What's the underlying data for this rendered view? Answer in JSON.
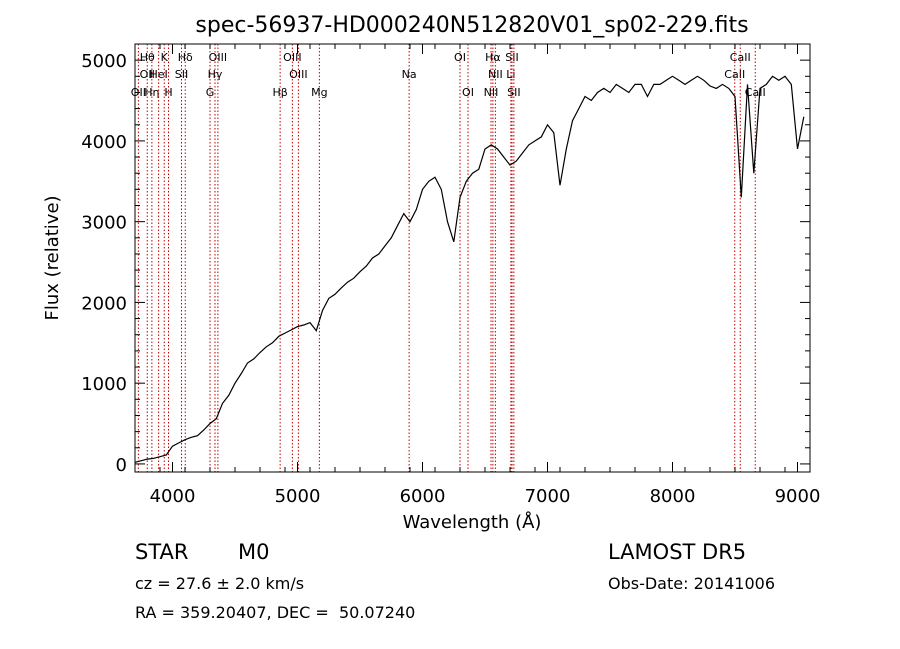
{
  "chart_data": {
    "type": "line",
    "title": "spec-56937-HD000240N512820V01_sp02-229.fits",
    "xlabel": "Wavelength (Å)",
    "ylabel": "Flux (relative)",
    "xlim": [
      3700,
      9100
    ],
    "ylim": [
      -100,
      5200
    ],
    "xticks": [
      4000,
      5000,
      6000,
      7000,
      8000,
      9000
    ],
    "yticks": [
      0,
      1000,
      2000,
      3000,
      4000,
      5000
    ],
    "grid": false,
    "series": [
      {
        "x": [
          3700,
          3750,
          3800,
          3850,
          3900,
          3950,
          4000,
          4050,
          4100,
          4150,
          4200,
          4250,
          4300,
          4350,
          4400,
          4450,
          4500,
          4550,
          4600,
          4650,
          4700,
          4750,
          4800,
          4850,
          4900,
          4950,
          5000,
          5050,
          5100,
          5150,
          5200,
          5250,
          5300,
          5350,
          5400,
          5450,
          5500,
          5550,
          5600,
          5650,
          5700,
          5750,
          5800,
          5850,
          5900,
          5950,
          6000,
          6050,
          6100,
          6150,
          6200,
          6250,
          6300,
          6350,
          6400,
          6450,
          6500,
          6550,
          6600,
          6650,
          6700,
          6750,
          6800,
          6850,
          6900,
          6950,
          7000,
          7050,
          7100,
          7150,
          7200,
          7250,
          7300,
          7350,
          7400,
          7450,
          7500,
          7550,
          7600,
          7650,
          7700,
          7750,
          7800,
          7850,
          7900,
          7950,
          8000,
          8050,
          8100,
          8150,
          8200,
          8250,
          8300,
          8350,
          8400,
          8450,
          8500,
          8550,
          8600,
          8650,
          8700,
          8750,
          8800,
          8850,
          8900,
          8950,
          9000,
          9050
        ],
        "y": [
          20,
          40,
          60,
          70,
          90,
          110,
          220,
          260,
          300,
          330,
          350,
          420,
          500,
          560,
          750,
          850,
          1000,
          1120,
          1250,
          1300,
          1380,
          1450,
          1500,
          1580,
          1620,
          1660,
          1700,
          1720,
          1750,
          1650,
          1900,
          2050,
          2100,
          2180,
          2250,
          2300,
          2380,
          2450,
          2550,
          2600,
          2700,
          2800,
          2950,
          3100,
          3000,
          3150,
          3400,
          3500,
          3550,
          3400,
          3000,
          2750,
          3300,
          3500,
          3600,
          3650,
          3900,
          3950,
          3900,
          3800,
          3700,
          3750,
          3850,
          3950,
          4000,
          4050,
          4200,
          4100,
          3450,
          3900,
          4250,
          4400,
          4550,
          4500,
          4600,
          4650,
          4600,
          4700,
          4650,
          4600,
          4700,
          4700,
          4550,
          4700,
          4700,
          4750,
          4800,
          4750,
          4700,
          4750,
          4800,
          4750,
          4680,
          4650,
          4700,
          4650,
          4550,
          3300,
          4700,
          3600,
          4650,
          4700,
          4800,
          4750,
          4800,
          4700,
          3900,
          4300
        ]
      }
    ],
    "lines": [
      {
        "x": 3727,
        "labels": [
          "OII"
        ],
        "row": [
          2
        ]
      },
      {
        "x": 3798,
        "labels": [
          "Hθ",
          "OII"
        ],
        "row": [
          0,
          1
        ]
      },
      {
        "x": 3835,
        "labels": [
          "Hη"
        ],
        "row": [
          2
        ]
      },
      {
        "x": 3889,
        "labels": [
          "HeI"
        ],
        "row": [
          1
        ]
      },
      {
        "x": 3934,
        "labels": [
          "K"
        ],
        "row": [
          0
        ]
      },
      {
        "x": 3968,
        "labels": [
          "H"
        ],
        "row": [
          2
        ]
      },
      {
        "x": 4072,
        "labels": [
          "SII"
        ],
        "row": [
          1
        ]
      },
      {
        "x": 4102,
        "labels": [
          "Hδ"
        ],
        "row": [
          0
        ]
      },
      {
        "x": 4300,
        "labels": [
          "G"
        ],
        "row": [
          2
        ]
      },
      {
        "x": 4340,
        "labels": [
          "Hγ"
        ],
        "row": [
          1
        ]
      },
      {
        "x": 4363,
        "labels": [
          "OIII"
        ],
        "row": [
          0
        ]
      },
      {
        "x": 4861,
        "labels": [
          "Hβ"
        ],
        "row": [
          2
        ]
      },
      {
        "x": 4959,
        "labels": [
          "OIII"
        ],
        "row": [
          0
        ]
      },
      {
        "x": 5007,
        "labels": [
          "OIII"
        ],
        "row": [
          1
        ]
      },
      {
        "x": 5175,
        "labels": [
          "Mg"
        ],
        "row": [
          2
        ]
      },
      {
        "x": 5893,
        "labels": [
          "Na"
        ],
        "row": [
          1
        ]
      },
      {
        "x": 6300,
        "labels": [
          "OI"
        ],
        "row": [
          0
        ]
      },
      {
        "x": 6364,
        "labels": [
          "OI"
        ],
        "row": [
          2
        ]
      },
      {
        "x": 6548,
        "labels": [
          "NII"
        ],
        "row": [
          2
        ]
      },
      {
        "x": 6563,
        "labels": [
          "Hα"
        ],
        "row": [
          0
        ]
      },
      {
        "x": 6583,
        "labels": [
          "NII"
        ],
        "row": [
          1
        ]
      },
      {
        "x": 6707,
        "labels": [
          "Li"
        ],
        "row": [
          1
        ]
      },
      {
        "x": 6716,
        "labels": [
          "SII"
        ],
        "row": [
          0
        ]
      },
      {
        "x": 6731,
        "labels": [
          "SII"
        ],
        "row": [
          2
        ]
      },
      {
        "x": 8498,
        "labels": [
          "CaII"
        ],
        "row": [
          1
        ]
      },
      {
        "x": 8542,
        "labels": [
          "CaII"
        ],
        "row": [
          0
        ]
      },
      {
        "x": 8662,
        "labels": [
          "CaII"
        ],
        "row": [
          2
        ]
      }
    ]
  },
  "info": {
    "class": "STAR",
    "subclass": "M0",
    "cz": "cz = 27.6 ± 2.0 km/s",
    "radec": "RA = 359.20407, DEC =  50.07240",
    "survey": "LAMOST DR5",
    "obsdate": "Obs-Date: 20141006"
  }
}
